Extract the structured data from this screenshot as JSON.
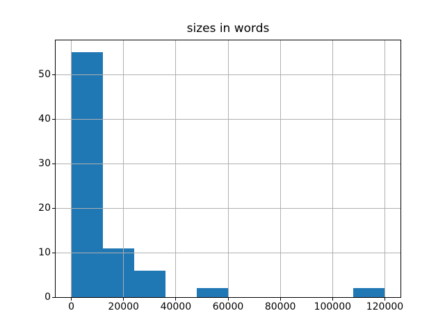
{
  "chart_data": {
    "type": "bar",
    "subtype": "histogram",
    "title": "sizes in words",
    "xlabel": "",
    "ylabel": "",
    "bin_edges": [
      0,
      12000,
      24000,
      36000,
      48000,
      60000,
      72000,
      84000,
      96000,
      108000,
      120000
    ],
    "counts": [
      55,
      11,
      6,
      0,
      2,
      0,
      0,
      0,
      0,
      2
    ],
    "xlim": [
      -6000,
      126000
    ],
    "ylim": [
      0,
      57.75
    ],
    "xticks": [
      0,
      20000,
      40000,
      60000,
      80000,
      100000,
      120000
    ],
    "xtick_labels": [
      "0",
      "20000",
      "40000",
      "60000",
      "80000",
      "100000",
      "120000"
    ],
    "yticks": [
      0,
      10,
      20,
      30,
      40,
      50
    ],
    "ytick_labels": [
      "0",
      "10",
      "20",
      "30",
      "40",
      "50"
    ],
    "grid": true,
    "grid_above_bars": true,
    "legend": "none",
    "colors": {
      "bar": "#1f77b4",
      "grid": "#b0b0b0",
      "spine": "#000000",
      "text": "#000000",
      "background": "#ffffff"
    }
  }
}
